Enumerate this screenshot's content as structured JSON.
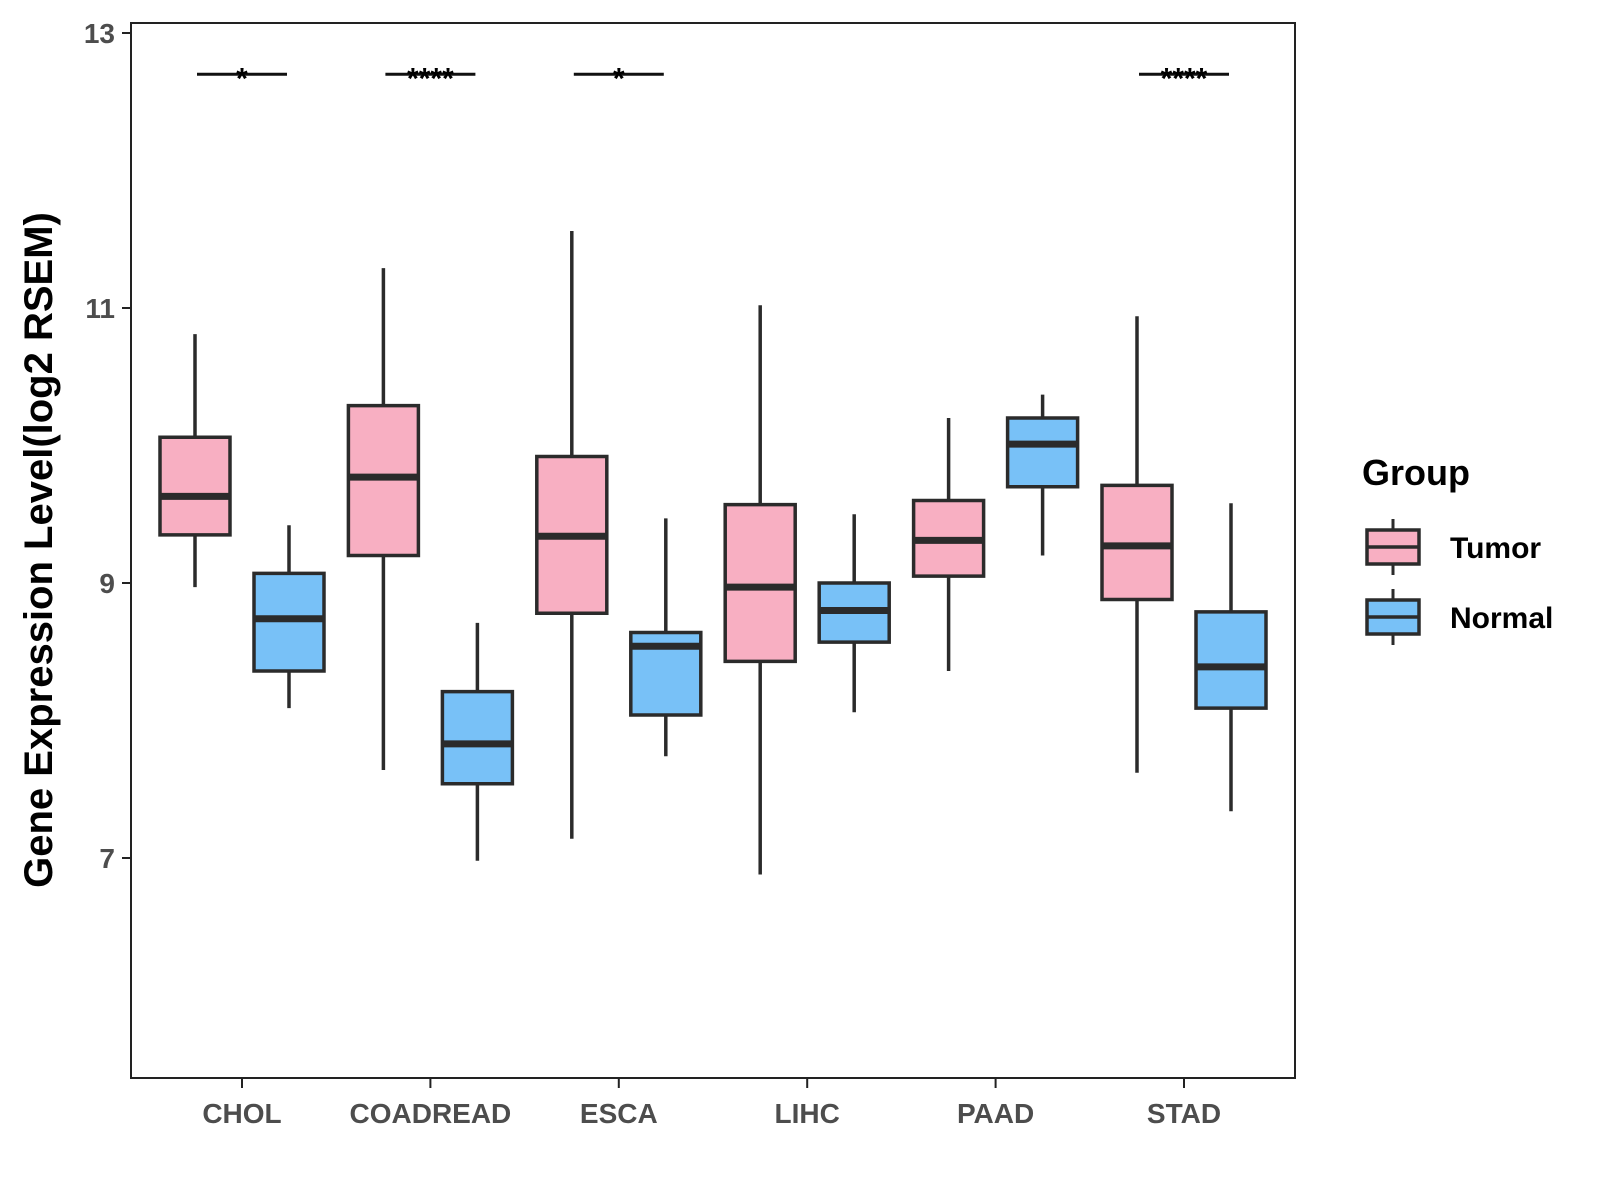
{
  "chart_data": {
    "type": "boxplot",
    "title": "",
    "xlabel": "",
    "ylabel": "Gene Expression Level(log2 RSEM)",
    "ylim": [
      5.4,
      13.1
    ],
    "yticks": [
      7,
      9,
      11,
      13
    ],
    "categories": [
      "CHOL",
      "COADREAD",
      "ESCA",
      "LIHC",
      "PAAD",
      "STAD"
    ],
    "legend": {
      "title": "Group",
      "position": "right",
      "entries": [
        {
          "name": "Tumor",
          "color": "#F8AFC2"
        },
        {
          "name": "Normal",
          "color": "#78C1F7"
        }
      ]
    },
    "series": [
      {
        "name": "Tumor",
        "color": "#F8AFC2",
        "boxes": [
          {
            "category": "CHOL",
            "min": 8.97,
            "q1": 9.35,
            "median": 9.63,
            "q3": 10.06,
            "max": 10.81
          },
          {
            "category": "COADREAD",
            "min": 7.64,
            "q1": 9.2,
            "median": 9.77,
            "q3": 10.29,
            "max": 11.29
          },
          {
            "category": "ESCA",
            "min": 7.14,
            "q1": 8.78,
            "median": 9.34,
            "q3": 9.92,
            "max": 11.56
          },
          {
            "category": "LIHC",
            "min": 6.88,
            "q1": 8.43,
            "median": 8.97,
            "q3": 9.57,
            "max": 11.02
          },
          {
            "category": "PAAD",
            "min": 8.36,
            "q1": 9.05,
            "median": 9.31,
            "q3": 9.6,
            "max": 10.2
          },
          {
            "category": "STAD",
            "min": 7.62,
            "q1": 8.88,
            "median": 9.27,
            "q3": 9.71,
            "max": 10.94
          }
        ]
      },
      {
        "name": "Normal",
        "color": "#78C1F7",
        "boxes": [
          {
            "category": "CHOL",
            "min": 8.09,
            "q1": 8.36,
            "median": 8.74,
            "q3": 9.07,
            "max": 9.42
          },
          {
            "category": "COADREAD",
            "min": 6.98,
            "q1": 7.54,
            "median": 7.83,
            "q3": 8.21,
            "max": 8.71
          },
          {
            "category": "ESCA",
            "min": 7.74,
            "q1": 8.04,
            "median": 8.54,
            "q3": 8.64,
            "max": 9.47
          },
          {
            "category": "LIHC",
            "min": 8.06,
            "q1": 8.57,
            "median": 8.8,
            "q3": 9.0,
            "max": 9.5
          },
          {
            "category": "PAAD",
            "min": 9.2,
            "q1": 9.7,
            "median": 10.01,
            "q3": 10.2,
            "max": 10.37
          },
          {
            "category": "STAD",
            "min": 7.34,
            "q1": 8.09,
            "median": 8.39,
            "q3": 8.79,
            "max": 9.58
          }
        ]
      }
    ],
    "significance": [
      {
        "category": "CHOL",
        "label": "*"
      },
      {
        "category": "COADREAD",
        "label": "****"
      },
      {
        "category": "ESCA",
        "label": "*"
      },
      {
        "category": "LIHC",
        "label": ""
      },
      {
        "category": "PAAD",
        "label": ""
      },
      {
        "category": "STAD",
        "label": "****"
      }
    ],
    "significance_y": 12.7,
    "grid": false
  }
}
